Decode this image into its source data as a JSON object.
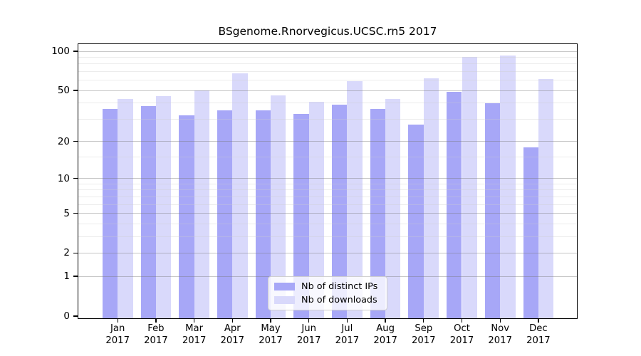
{
  "chart_data": {
    "type": "bar",
    "title": "BSgenome.Rnorvegicus.UCSC.rn5 2017",
    "year": "2017",
    "categories": [
      "Jan",
      "Feb",
      "Mar",
      "Apr",
      "May",
      "Jun",
      "Jul",
      "Aug",
      "Sep",
      "Oct",
      "Nov",
      "Dec"
    ],
    "series": [
      {
        "name": "Nb of distinct IPs",
        "key": "distinct-ips",
        "color": "#A7A7F7",
        "values": [
          36,
          38,
          32,
          35,
          35,
          33,
          39,
          36,
          27,
          49,
          40,
          18
        ]
      },
      {
        "name": "Nb of downloads",
        "key": "downloads",
        "color": "#D9D9FB",
        "values": [
          43,
          45,
          50,
          68,
          46,
          41,
          59,
          43,
          62,
          90,
          93,
          61
        ]
      }
    ],
    "y_axis": {
      "scale": "log1p",
      "major_ticks": [
        0,
        1,
        2,
        5,
        10,
        20,
        50,
        100
      ],
      "minor_gridlines": [
        3,
        4,
        6,
        7,
        8,
        9,
        15,
        30,
        40,
        60,
        70,
        80,
        90
      ],
      "max": 100
    },
    "xlabel": "",
    "ylabel": "",
    "grid": "horizontal",
    "legend_position": "bottom-center"
  },
  "colors": {
    "major_grid": "#c6c6c6",
    "minor_grid": "#ececec",
    "spine": "#000000",
    "background": "#ffffff"
  }
}
